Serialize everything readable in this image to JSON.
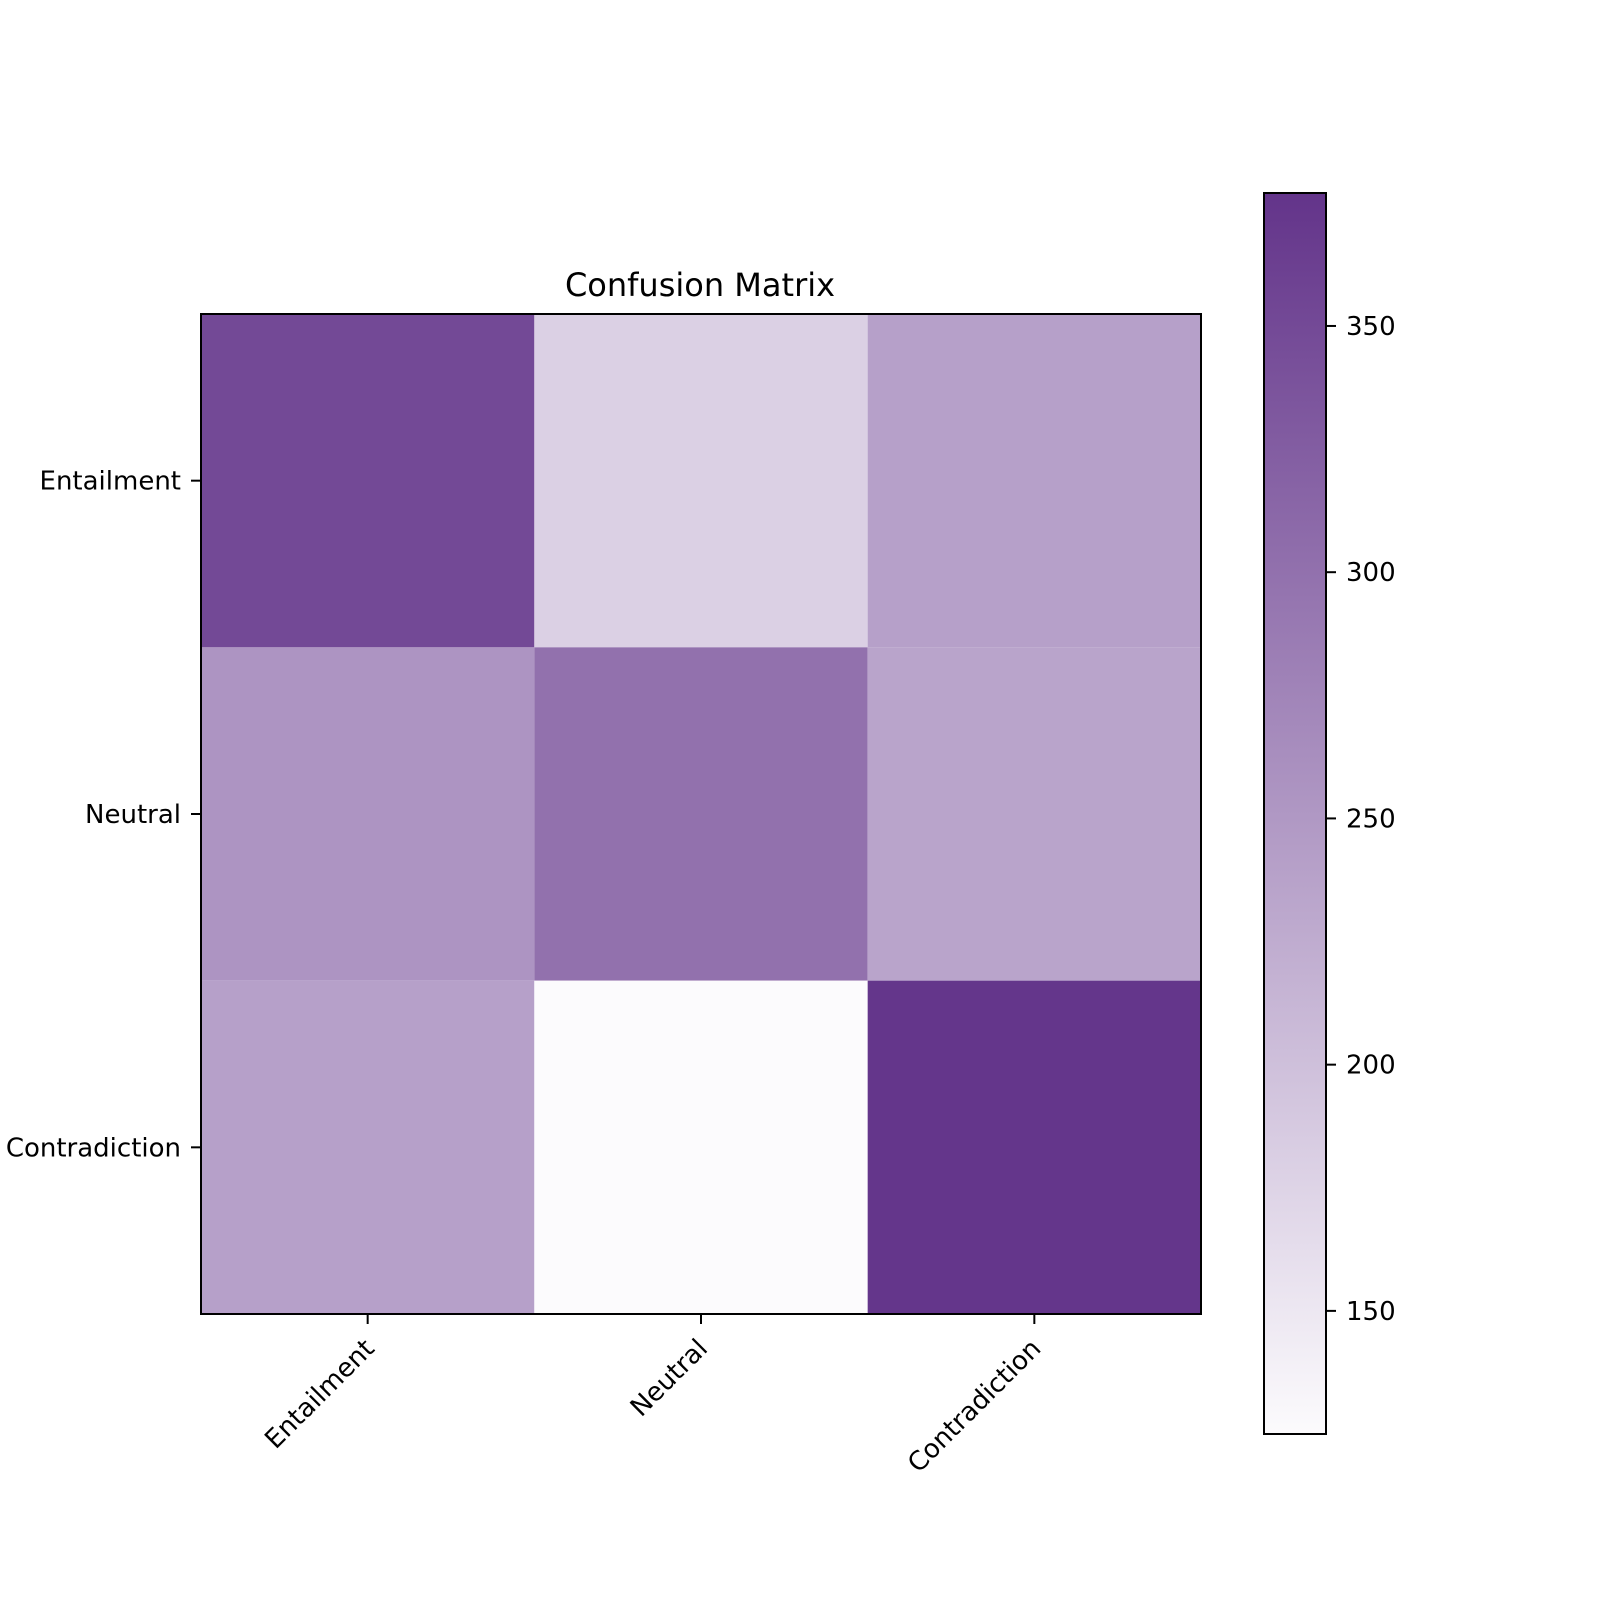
{
  "chart_data": {
    "type": "heatmap",
    "title": "Confusion Matrix",
    "xlabel": "",
    "ylabel": "",
    "x_categories": [
      "Entailment",
      "Neutral",
      "Contradiction"
    ],
    "y_categories": [
      "Entailment",
      "Neutral",
      "Contradiction"
    ],
    "values": [
      [
        350,
        180,
        240
      ],
      [
        255,
        300,
        235
      ],
      [
        240,
        125,
        375
      ]
    ],
    "colorbar": {
      "min": 125,
      "max": 377,
      "ticks": [
        150,
        200,
        250,
        300,
        350
      ],
      "colors": {
        "low": "#fcfbfd",
        "high": "#63348a"
      }
    },
    "grid": false
  }
}
